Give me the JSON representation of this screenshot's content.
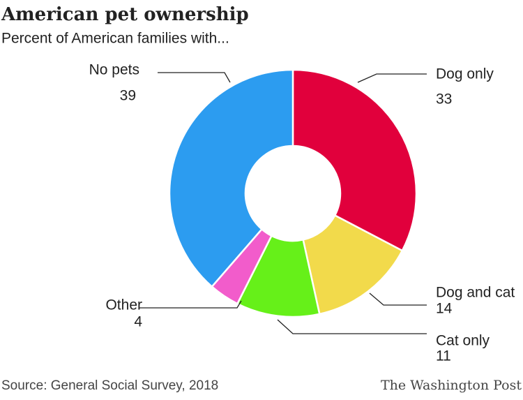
{
  "chart_data": {
    "type": "donut",
    "title": "American pet ownership",
    "subtitle": "Percent of American families with...",
    "categories": [
      "Dog only",
      "Dog and cat",
      "Cat only",
      "Other",
      "No pets"
    ],
    "values": [
      33,
      14,
      11,
      4,
      39
    ],
    "colors": [
      "#e1003c",
      "#f2da4b",
      "#66f019",
      "#f25ccb",
      "#2c9cf0"
    ],
    "source": "Source: General Social Survey, 2018",
    "credit": "The Washington Post"
  }
}
